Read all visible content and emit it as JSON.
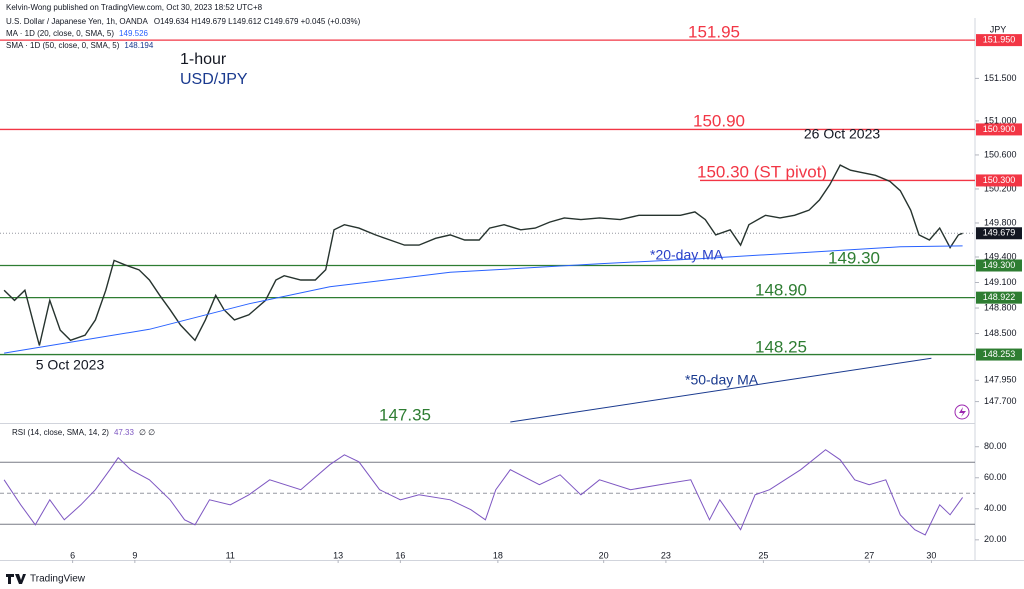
{
  "header": {
    "published": "Kelvin-Wong published on TradingView.com, Oct 30, 2023 18:52 UTC+8"
  },
  "footer": "TradingView",
  "chart_data": [
    {
      "type": "line",
      "title": "1-hour",
      "subtitle": "USD/JPY",
      "axis_label": "JPY",
      "ohlc": "O149.634  H149.679  L149.612  C149.679  +0.045 (+0.03%)",
      "grid": false,
      "xlim": [
        0,
        470
      ],
      "ylim": [
        147.46,
        152.21
      ],
      "xticks": [
        {
          "value": 35,
          "label": "6"
        },
        {
          "value": 65,
          "label": "9"
        },
        {
          "value": 111,
          "label": "11"
        },
        {
          "value": 163,
          "label": "13"
        },
        {
          "value": 193,
          "label": "16"
        },
        {
          "value": 240,
          "label": "18"
        },
        {
          "value": 291,
          "label": "20"
        },
        {
          "value": 321,
          "label": "23"
        },
        {
          "value": 368,
          "label": "25"
        },
        {
          "value": 419,
          "label": "27"
        },
        {
          "value": 449,
          "label": "30"
        }
      ],
      "yticks": [
        {
          "value": 151.5,
          "label": "151.500"
        },
        {
          "value": 151.0,
          "label": "151.000"
        },
        {
          "value": 150.6,
          "label": "150.600"
        },
        {
          "value": 150.2,
          "label": "150.200"
        },
        {
          "value": 149.8,
          "label": "149.800"
        },
        {
          "value": 149.4,
          "label": "149.400"
        },
        {
          "value": 149.1,
          "label": "149.100"
        },
        {
          "value": 148.8,
          "label": "148.800"
        },
        {
          "value": 148.5,
          "label": "148.500"
        },
        {
          "value": 147.95,
          "label": "147.950"
        },
        {
          "value": 147.7,
          "label": "147.700"
        }
      ],
      "last_price": {
        "value": 149.679,
        "label": "149.679",
        "color": "#131722"
      },
      "series": [
        {
          "name": "U.S. Dollar / Japanese Yen, 1h, OANDA",
          "color": "#26332e",
          "x": [
            2,
            7,
            12,
            17,
            19,
            24,
            29,
            34,
            41,
            46,
            51,
            55,
            60,
            67,
            72,
            77,
            82,
            87,
            94,
            99,
            104,
            108,
            113,
            120,
            128,
            133,
            137,
            145,
            152,
            157,
            161,
            166,
            173,
            181,
            188,
            195,
            202,
            210,
            217,
            224,
            231,
            236,
            243,
            251,
            258,
            265,
            272,
            280,
            289,
            299,
            308,
            318,
            328,
            335,
            340,
            345,
            352,
            357,
            361,
            369,
            376,
            383,
            390,
            395,
            400,
            405,
            410,
            414,
            422,
            429,
            434,
            439,
            443,
            448,
            453,
            458,
            462,
            464
          ],
          "values": [
            149.01,
            148.89,
            149.01,
            148.54,
            148.36,
            148.89,
            148.54,
            148.42,
            148.48,
            148.66,
            149.01,
            149.36,
            149.31,
            149.25,
            149.13,
            148.95,
            148.78,
            148.6,
            148.42,
            148.66,
            148.95,
            148.78,
            148.66,
            148.72,
            148.89,
            149.13,
            149.18,
            149.13,
            149.13,
            149.25,
            149.72,
            149.78,
            149.74,
            149.66,
            149.6,
            149.54,
            149.54,
            149.62,
            149.66,
            149.6,
            149.6,
            149.74,
            149.78,
            149.72,
            149.74,
            149.81,
            149.86,
            149.84,
            149.86,
            149.84,
            149.89,
            149.89,
            149.89,
            149.93,
            149.84,
            149.66,
            149.72,
            149.54,
            149.78,
            149.89,
            149.86,
            149.89,
            149.95,
            150.07,
            150.25,
            150.48,
            150.42,
            150.4,
            150.36,
            150.29,
            150.18,
            149.95,
            149.66,
            149.6,
            149.74,
            149.51,
            149.66,
            149.679
          ]
        },
        {
          "name": "MA · 1D (20, close, 0, SMA, 5)",
          "last_label": "149.526",
          "color": "#2962ff",
          "x": [
            2,
            72,
            120,
            159,
            217,
            289,
            337,
            386,
            434,
            464
          ],
          "values": [
            148.27,
            148.55,
            148.85,
            149.05,
            149.22,
            149.32,
            149.38,
            149.45,
            149.52,
            149.53
          ]
        },
        {
          "name": "SMA · 1D (50, close, 0, SMA, 5)",
          "last_label": "148.194",
          "color": "#1a3a8f",
          "x": [
            246,
            449
          ],
          "values": [
            147.46,
            148.21
          ]
        }
      ],
      "levels": [
        {
          "value": 151.95,
          "label": "151.950",
          "annotation": "151.95",
          "color": "#f23645"
        },
        {
          "value": 150.9,
          "label": "150.900",
          "annotation": "150.90",
          "color": "#f23645"
        },
        {
          "value": 150.3,
          "label": "150.300",
          "annotation": "150.30 (ST pivot)",
          "color": "#f23645"
        },
        {
          "value": 149.3,
          "label": "149.300",
          "annotation": "149.30",
          "color": "#2e7d32"
        },
        {
          "value": 148.922,
          "label": "148.922",
          "annotation": "148.90",
          "color": "#2e7d32"
        },
        {
          "value": 148.253,
          "label": "148.253",
          "annotation": "148.25",
          "color": "#2e7d32"
        }
      ],
      "annotations": [
        {
          "text": "26 Oct 2023",
          "color": "#131722"
        },
        {
          "text": "5 Oct 2023",
          "color": "#131722"
        },
        {
          "text": "*20-day MA",
          "color": "#2a40c8"
        },
        {
          "text": "*50-day MA",
          "color": "#1a3a8f"
        },
        {
          "text": "147.35",
          "color": "#2e7d32"
        }
      ]
    },
    {
      "type": "rsi",
      "ylim": [
        7,
        94
      ],
      "yticks": [
        {
          "value": 80,
          "label": "80.00"
        },
        {
          "value": 60,
          "label": "60.00"
        },
        {
          "value": 40,
          "label": "40.00"
        },
        {
          "value": 20,
          "label": "20.00"
        }
      ],
      "bands": [
        70,
        30
      ],
      "midline": 50,
      "xlim": [
        0,
        470
      ],
      "series": [
        {
          "name": "RSI (14, close, SMA, 14, 2)",
          "last_label": "47.33",
          "extra": "∅  ∅",
          "color": "#7e57c2",
          "x": [
            2,
            10,
            17,
            24,
            31,
            39,
            46,
            53,
            57,
            63,
            72,
            82,
            89,
            94,
            101,
            111,
            120,
            130,
            145,
            159,
            166,
            173,
            183,
            193,
            202,
            217,
            227,
            234,
            239,
            246,
            260,
            270,
            280,
            289,
            304,
            318,
            333,
            342,
            347,
            357,
            364,
            371,
            386,
            398,
            405,
            412,
            419,
            427,
            434,
            441,
            446,
            453,
            458,
            464
          ],
          "values": [
            58.7,
            42.6,
            29.7,
            45.8,
            32.9,
            42.6,
            52.3,
            65.2,
            72.9,
            65.2,
            58.7,
            45.8,
            32.9,
            29.7,
            45.8,
            42.6,
            49.0,
            58.7,
            52.3,
            68.4,
            74.8,
            70.3,
            52.3,
            45.8,
            49.0,
            45.8,
            39.4,
            32.9,
            52.3,
            65.2,
            55.5,
            61.9,
            49.0,
            58.7,
            52.3,
            55.5,
            58.7,
            32.9,
            45.8,
            26.5,
            49.0,
            52.3,
            65.2,
            78.1,
            71.6,
            58.7,
            55.5,
            58.7,
            36.1,
            26.5,
            23.2,
            42.6,
            36.1,
            47.33
          ]
        }
      ]
    }
  ]
}
